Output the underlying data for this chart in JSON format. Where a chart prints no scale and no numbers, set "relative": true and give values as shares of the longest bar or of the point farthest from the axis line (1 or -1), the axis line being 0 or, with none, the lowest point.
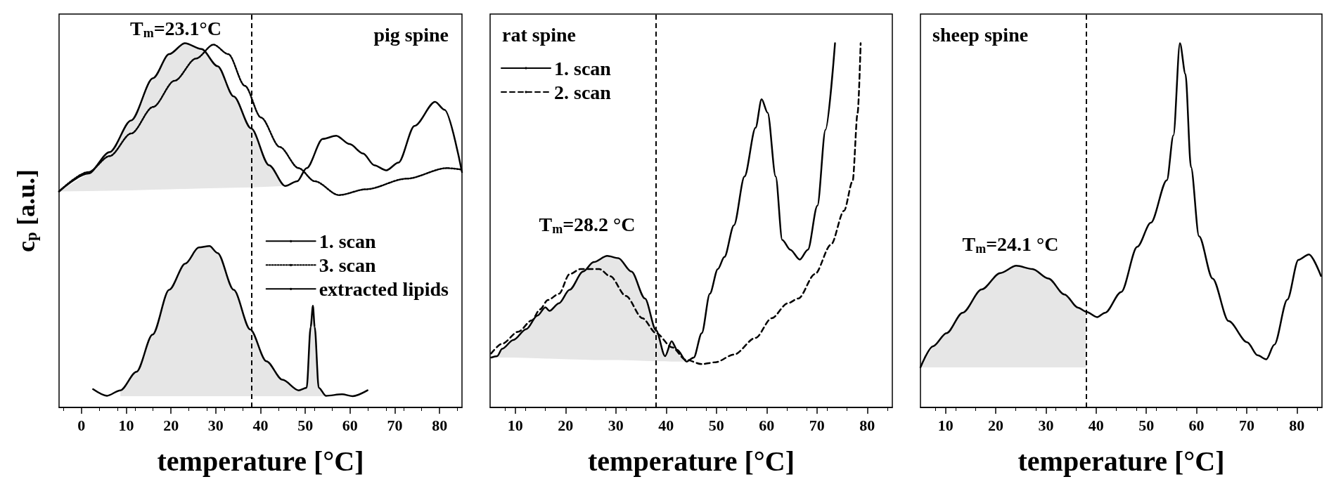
{
  "chart_data": [
    {
      "type": "line",
      "title": "pig spine",
      "xlabel": "temperature [°C]",
      "ylabel": "c$_{p}$ [a.u.]",
      "relative": true,
      "xlim": [
        -5,
        85
      ],
      "xticks": [
        0,
        10,
        20,
        30,
        40,
        50,
        60,
        70,
        80
      ],
      "legend": "right",
      "series": [
        {
          "name": "1. scan",
          "color": "#000000",
          "line_style": "solid",
          "x": [
            -5,
            1.5,
            6.3,
            11.1,
            16.0,
            19.6,
            23.1,
            26.8,
            30.4,
            34.0,
            37.9,
            41.9,
            45.5,
            48.2,
            50.3,
            53.9,
            56.9,
            59.9,
            62.9,
            65.4,
            68.1,
            70.8,
            74.4,
            79.0,
            81.1,
            85
          ],
          "values": [
            0.593,
            0.642,
            0.701,
            0.788,
            0.904,
            0.97,
            1.0,
            0.984,
            0.937,
            0.854,
            0.766,
            0.665,
            0.608,
            0.621,
            0.657,
            0.737,
            0.746,
            0.723,
            0.697,
            0.665,
            0.651,
            0.672,
            0.773,
            0.839,
            0.817,
            0.646
          ],
          "upper": [
            0.593,
            0.642,
            0.701,
            0.788,
            0.904,
            0.97,
            1.0,
            0.984,
            0.937,
            0.854,
            0.766,
            0.665,
            0.608,
            null,
            null,
            null,
            null,
            null,
            null,
            null,
            null,
            null,
            null,
            null,
            null,
            null
          ],
          "lower": [
            0.593,
            0.594,
            0.595,
            0.596,
            0.598,
            0.599,
            0.6,
            0.601,
            0.602,
            0.603,
            0.604,
            0.606,
            0.608,
            null,
            null,
            null,
            null,
            null,
            null,
            null,
            null,
            null,
            null,
            null,
            null,
            null
          ]
        },
        {
          "name": "3. scan",
          "color": "#000000",
          "line_style": "dotted",
          "x": [
            -5,
            1.5,
            6.3,
            11.1,
            16.0,
            20.8,
            25.6,
            29.5,
            32.8,
            36.5,
            40.1,
            44.3,
            48.5,
            52.1,
            57.5,
            63.6,
            72.6,
            81.6,
            85
          ],
          "values": [
            0.593,
            0.646,
            0.69,
            0.752,
            0.825,
            0.897,
            0.958,
            0.996,
            0.97,
            0.883,
            0.796,
            0.715,
            0.657,
            0.621,
            0.583,
            0.599,
            0.628,
            0.657,
            0.653
          ]
        },
        {
          "name": "extracted lipids",
          "color": "#000000",
          "line_style": "solid",
          "x": [
            2.6,
            5.7,
            8.7,
            12.3,
            15.9,
            19.6,
            23.2,
            26.2,
            28.6,
            30.4,
            34.0,
            37.7,
            41.3,
            44.9,
            48.5,
            50.3,
            51.2,
            51.7,
            52.1,
            53.0,
            54.6,
            58.2,
            60.6,
            63.9
          ],
          "values": [
            0.05,
            0.032,
            0.047,
            0.098,
            0.2,
            0.323,
            0.395,
            0.439,
            0.443,
            0.424,
            0.323,
            0.214,
            0.127,
            0.076,
            0.047,
            0.054,
            0.221,
            0.279,
            0.221,
            0.054,
            0.032,
            0.036,
            0.031,
            0.047
          ],
          "upper": [
            null,
            null,
            0.047,
            0.098,
            0.2,
            0.323,
            0.395,
            0.439,
            0.443,
            0.424,
            0.323,
            0.214,
            0.127,
            0.076,
            0.047,
            0.054,
            0.221,
            0.279,
            0.221,
            0.054,
            0.032,
            null,
            null,
            null
          ],
          "lower": [
            null,
            null,
            0.031,
            0.031,
            0.031,
            0.031,
            0.031,
            0.031,
            0.031,
            0.031,
            0.031,
            0.031,
            0.031,
            0.031,
            0.031,
            0.031,
            0.031,
            0.031,
            0.031,
            0.031,
            0.031,
            null,
            null,
            null
          ]
        }
      ],
      "ref_lines": [
        {
          "axis": "x",
          "value": 38,
          "color": "#000000",
          "line_style": "dashed"
        }
      ],
      "annotations": [
        "T$_{m}$=23.1°C"
      ]
    },
    {
      "type": "line",
      "title": "rat spine",
      "xlabel": "temperature [°C]",
      "relative": true,
      "xlim": [
        5,
        85
      ],
      "xticks": [
        10,
        20,
        30,
        40,
        50,
        60,
        70,
        80
      ],
      "legend": "top left",
      "series": [
        {
          "name": "1. scan",
          "color": "#000000",
          "line_style": "solid",
          "x": [
            5.2,
            6.4,
            7.4,
            9.6,
            12.2,
            14.4,
            16.0,
            16.8,
            18.7,
            20.8,
            23.5,
            25.6,
            28.3,
            30.5,
            33.1,
            35.8,
            38.0,
            39.8,
            41.1,
            42.2,
            44.1,
            45.5,
            47.1,
            48.7,
            50.3,
            51.6,
            53.5,
            55.6,
            57.8,
            59.0,
            60.2,
            61.8,
            63.1,
            64.7,
            66.6,
            68.2,
            70.1,
            71.7,
            73.6
          ],
          "values": [
            0.137,
            0.141,
            0.161,
            0.185,
            0.215,
            0.252,
            0.275,
            0.265,
            0.286,
            0.323,
            0.373,
            0.399,
            0.416,
            0.41,
            0.373,
            0.299,
            0.212,
            0.141,
            0.182,
            0.158,
            0.126,
            0.137,
            0.204,
            0.312,
            0.38,
            0.413,
            0.5,
            0.634,
            0.768,
            0.846,
            0.809,
            0.634,
            0.46,
            0.433,
            0.406,
            0.433,
            0.554,
            0.762,
            1.0
          ],
          "upper": [
            0.137,
            0.141,
            0.161,
            0.185,
            0.215,
            0.252,
            0.275,
            0.265,
            0.286,
            0.323,
            0.373,
            0.399,
            0.416,
            0.41,
            0.373,
            0.299,
            0.212,
            0.141,
            0.182,
            0.158,
            0.126,
            null,
            null,
            null,
            null,
            null,
            null,
            null,
            null,
            null,
            null,
            null,
            null,
            null,
            null,
            null,
            null,
            null,
            null
          ],
          "lower": [
            0.137,
            0.137,
            0.137,
            0.137,
            0.136,
            0.135,
            0.134,
            0.134,
            0.133,
            0.132,
            0.131,
            0.13,
            0.13,
            0.13,
            0.129,
            0.128,
            0.127,
            0.127,
            0.126,
            0.126,
            0.126,
            null,
            null,
            null,
            null,
            null,
            null,
            null,
            null,
            null,
            null,
            null,
            null,
            null,
            null,
            null,
            null,
            null,
            null
          ]
        },
        {
          "name": "2. scan",
          "color": "#000000",
          "line_style": "dashed",
          "x": [
            5.2,
            7.4,
            10.6,
            13.3,
            14.9,
            16.5,
            18.7,
            20.8,
            23.0,
            26.7,
            28.9,
            32.0,
            35.3,
            38.0,
            41.2,
            43.9,
            47.1,
            49.8,
            53.5,
            57.8,
            61.0,
            64.2,
            66.3,
            69.6,
            72.8,
            75.4,
            77.1,
            78.1,
            78.7
          ],
          "values": [
            0.148,
            0.175,
            0.208,
            0.239,
            0.269,
            0.295,
            0.312,
            0.366,
            0.38,
            0.38,
            0.36,
            0.306,
            0.245,
            0.204,
            0.165,
            0.131,
            0.119,
            0.124,
            0.145,
            0.191,
            0.245,
            0.286,
            0.299,
            0.366,
            0.447,
            0.54,
            0.621,
            0.809,
            1.0
          ]
        }
      ],
      "ref_lines": [
        {
          "axis": "x",
          "value": 38,
          "color": "#000000",
          "line_style": "dashed"
        }
      ],
      "annotations": [
        "T$_{m}$=28.2 °C"
      ]
    },
    {
      "type": "line",
      "title": "sheep spine",
      "xlabel": "temperature [°C]",
      "relative": true,
      "xlim": [
        5,
        85
      ],
      "xticks": [
        10,
        20,
        30,
        40,
        50,
        60,
        70,
        80
      ],
      "series": [
        {
          "color": "#000000",
          "line_style": "solid",
          "x": [
            5.0,
            7.5,
            10.2,
            13.4,
            17.2,
            20.9,
            24.1,
            27.3,
            30.5,
            33.7,
            36.4,
            38.0,
            40.2,
            41.8,
            45.0,
            48.2,
            50.9,
            54.1,
            55.4,
            56.7,
            57.8,
            58.9,
            60.5,
            63.2,
            66.4,
            70.1,
            72.2,
            73.9,
            75.5,
            78.1,
            80.3,
            82.4,
            84.8
          ],
          "values": [
            0.11,
            0.168,
            0.204,
            0.26,
            0.324,
            0.369,
            0.389,
            0.38,
            0.354,
            0.31,
            0.274,
            0.263,
            0.248,
            0.26,
            0.317,
            0.441,
            0.507,
            0.624,
            0.747,
            1.0,
            0.915,
            0.66,
            0.47,
            0.354,
            0.237,
            0.179,
            0.143,
            0.132,
            0.172,
            0.296,
            0.405,
            0.42,
            0.361
          ],
          "upper": [
            0.11,
            0.168,
            0.204,
            0.26,
            0.324,
            0.369,
            0.389,
            0.38,
            0.354,
            0.31,
            0.274,
            0.263,
            null,
            null,
            null,
            null,
            null,
            null,
            null,
            null,
            null,
            null,
            null,
            null,
            null,
            null,
            null,
            null,
            null,
            null,
            null,
            null,
            null
          ],
          "lower": [
            0.11,
            0.11,
            0.11,
            0.11,
            0.11,
            0.11,
            0.11,
            0.11,
            0.11,
            0.11,
            0.11,
            0.11,
            null,
            null,
            null,
            null,
            null,
            null,
            null,
            null,
            null,
            null,
            null,
            null,
            null,
            null,
            null,
            null,
            null,
            null,
            null,
            null,
            null
          ]
        }
      ],
      "ref_lines": [
        {
          "axis": "x",
          "value": 38,
          "color": "#000000",
          "line_style": "dashed"
        }
      ],
      "annotations": [
        "T$_{m}$=24.1 °C"
      ]
    }
  ]
}
